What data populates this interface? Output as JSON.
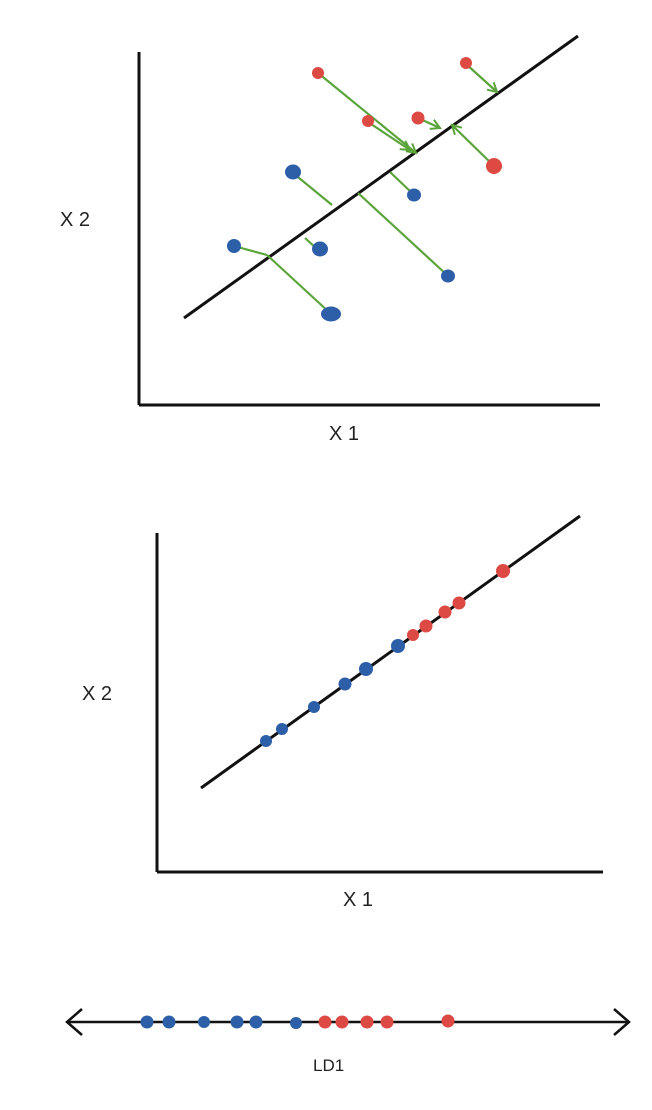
{
  "colors": {
    "class_a": "#2d5fa8",
    "class_b": "#dc4a43",
    "projection": "#5aa43a",
    "line": "#111111",
    "axis": "#111111"
  },
  "panel1": {
    "x_label": "X 1",
    "y_label": "X 2"
  },
  "panel2": {
    "x_label": "X 1",
    "y_label": "X 2"
  },
  "panel3": {
    "axis_label": "LD1"
  }
}
